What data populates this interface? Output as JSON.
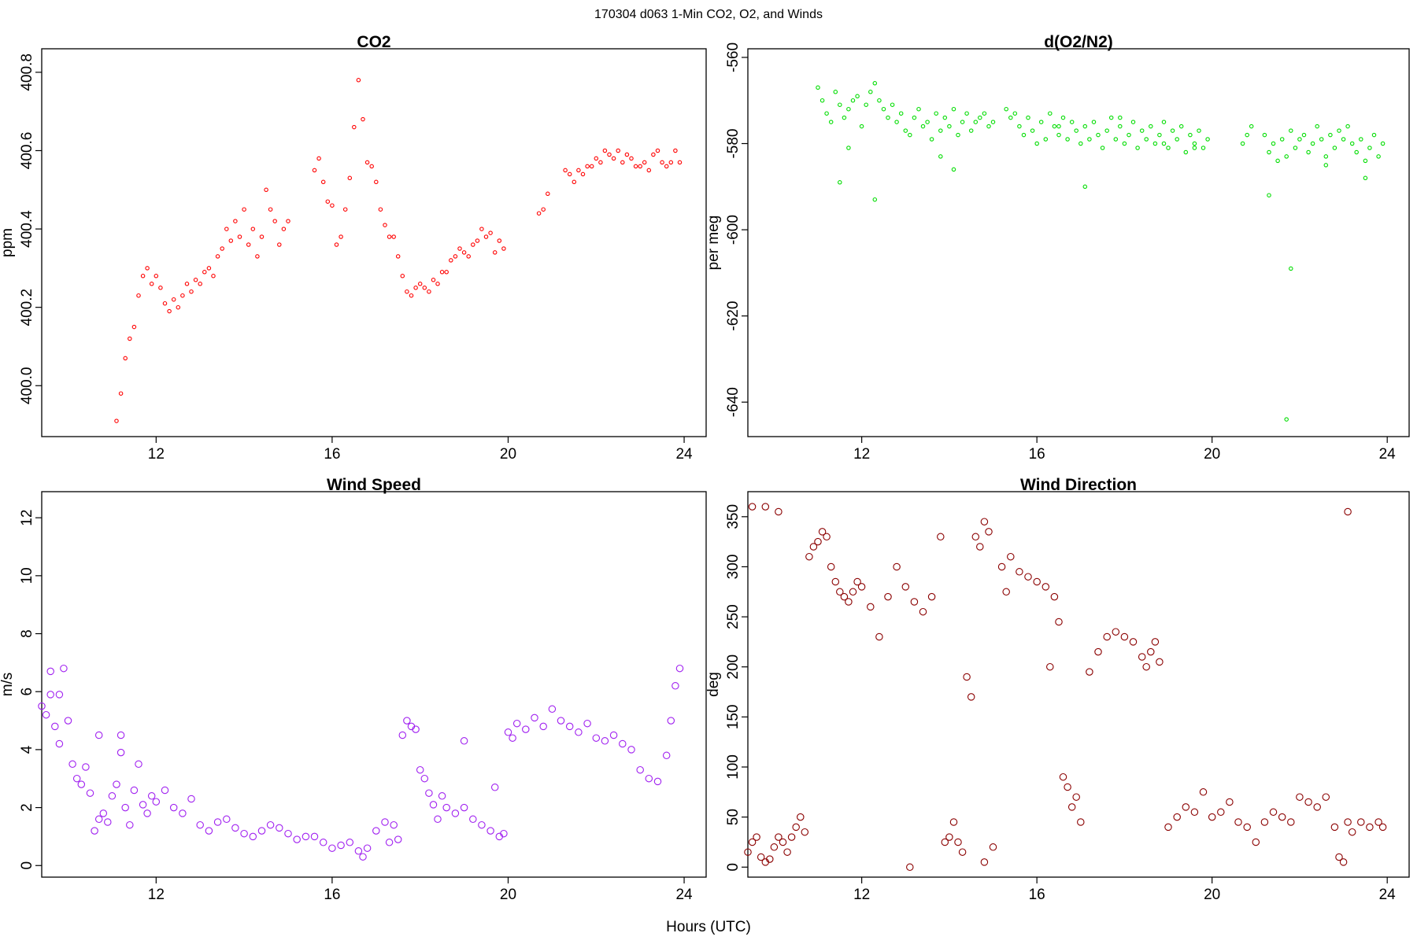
{
  "figure": {
    "title": "170304   d063   1-Min CO2, O2, and Winds",
    "xlabel": "Hours (UTC)"
  },
  "colors": {
    "co2": "#ff0000",
    "o2": "#00dd00",
    "wind_speed": "#a020f0",
    "wind_direction": "#8b0000"
  },
  "chart_data": [
    {
      "id": "co2",
      "type": "scatter",
      "title": "CO2",
      "xlabel": "",
      "ylabel": "ppm",
      "xlim": [
        9.4,
        24.5
      ],
      "ylim": [
        399.87,
        400.86
      ],
      "xticks": [
        12,
        16,
        20,
        24
      ],
      "yticks": [
        400.0,
        400.2,
        400.4,
        400.6,
        400.8
      ],
      "ytick_labels": [
        "400.0",
        "400.2",
        "400.4",
        "400.6",
        "400.8"
      ],
      "series": [
        {
          "name": "CO2",
          "color": "#ff0000",
          "x": [
            11.1,
            11.2,
            11.3,
            11.4,
            11.5,
            11.6,
            11.7,
            11.8,
            11.9,
            12.0,
            12.1,
            12.2,
            12.3,
            12.4,
            12.5,
            12.6,
            12.7,
            12.8,
            12.9,
            13.0,
            13.1,
            13.2,
            13.3,
            13.4,
            13.5,
            13.6,
            13.7,
            13.8,
            13.9,
            14.0,
            14.1,
            14.2,
            14.3,
            14.4,
            14.5,
            14.6,
            14.7,
            14.8,
            14.9,
            15.0,
            15.6,
            15.7,
            15.8,
            15.9,
            16.0,
            16.1,
            16.2,
            16.3,
            16.4,
            16.5,
            16.6,
            16.7,
            16.8,
            16.9,
            17.0,
            17.1,
            17.2,
            17.3,
            17.4,
            17.5,
            17.6,
            17.7,
            17.8,
            17.9,
            18.0,
            18.1,
            18.2,
            18.3,
            18.4,
            18.5,
            18.6,
            18.7,
            18.8,
            18.9,
            19.0,
            19.1,
            19.2,
            19.3,
            19.4,
            19.5,
            19.6,
            19.7,
            19.8,
            19.9,
            20.7,
            20.8,
            20.9,
            21.3,
            21.4,
            21.5,
            21.6,
            21.7,
            21.8,
            21.9,
            22.0,
            22.1,
            22.2,
            22.3,
            22.4,
            22.5,
            22.6,
            22.7,
            22.8,
            22.9,
            23.0,
            23.1,
            23.2,
            23.3,
            23.4,
            23.5,
            23.6,
            23.7,
            23.8,
            23.9
          ],
          "y": [
            399.91,
            399.98,
            400.07,
            400.12,
            400.15,
            400.23,
            400.28,
            400.3,
            400.26,
            400.28,
            400.25,
            400.21,
            400.19,
            400.22,
            400.2,
            400.23,
            400.26,
            400.24,
            400.27,
            400.26,
            400.29,
            400.3,
            400.28,
            400.33,
            400.35,
            400.4,
            400.37,
            400.42,
            400.38,
            400.45,
            400.36,
            400.4,
            400.33,
            400.38,
            400.5,
            400.45,
            400.42,
            400.36,
            400.4,
            400.42,
            400.55,
            400.58,
            400.52,
            400.47,
            400.46,
            400.36,
            400.38,
            400.45,
            400.53,
            400.66,
            400.78,
            400.68,
            400.57,
            400.56,
            400.52,
            400.45,
            400.41,
            400.38,
            400.38,
            400.33,
            400.28,
            400.24,
            400.23,
            400.25,
            400.26,
            400.25,
            400.24,
            400.27,
            400.26,
            400.29,
            400.29,
            400.32,
            400.33,
            400.35,
            400.34,
            400.33,
            400.36,
            400.37,
            400.4,
            400.38,
            400.39,
            400.34,
            400.37,
            400.35,
            400.44,
            400.45,
            400.49,
            400.55,
            400.54,
            400.52,
            400.55,
            400.54,
            400.56,
            400.56,
            400.58,
            400.57,
            400.6,
            400.59,
            400.58,
            400.6,
            400.57,
            400.59,
            400.58,
            400.56,
            400.56,
            400.57,
            400.55,
            400.59,
            400.6,
            400.57,
            400.56,
            400.57,
            400.6,
            400.57
          ]
        }
      ]
    },
    {
      "id": "o2",
      "type": "scatter",
      "title": "d(O2/N2)",
      "xlabel": "",
      "ylabel": "per meg",
      "xlim": [
        9.4,
        24.5
      ],
      "ylim": [
        -648,
        -558
      ],
      "xticks": [
        12,
        16,
        20,
        24
      ],
      "yticks": [
        -560,
        -580,
        -600,
        -620,
        -640
      ],
      "ytick_labels": [
        "-560",
        "-580",
        "-600",
        "-620",
        "-640"
      ],
      "series": [
        {
          "name": "d(O2/N2)",
          "color": "#00dd00",
          "x": [
            11.0,
            11.1,
            11.2,
            11.3,
            11.4,
            11.5,
            11.6,
            11.7,
            11.8,
            11.9,
            12.0,
            12.1,
            12.2,
            12.3,
            12.4,
            12.5,
            12.6,
            12.7,
            12.8,
            12.9,
            13.0,
            13.1,
            13.2,
            13.3,
            13.4,
            13.5,
            13.6,
            13.7,
            13.8,
            13.9,
            14.0,
            14.1,
            14.2,
            14.3,
            14.4,
            14.5,
            14.6,
            14.7,
            14.8,
            14.9,
            15.0,
            15.3,
            15.4,
            15.5,
            15.6,
            15.7,
            15.8,
            15.9,
            16.0,
            16.1,
            16.2,
            16.3,
            16.4,
            16.5,
            16.6,
            16.7,
            16.8,
            16.9,
            17.0,
            17.1,
            17.2,
            17.3,
            17.4,
            17.5,
            17.6,
            17.7,
            17.8,
            17.9,
            18.0,
            18.1,
            18.2,
            18.3,
            18.4,
            18.5,
            18.6,
            18.7,
            18.8,
            18.9,
            19.0,
            19.1,
            19.2,
            19.3,
            19.4,
            19.5,
            19.6,
            19.7,
            19.8,
            19.9,
            20.7,
            20.8,
            20.9,
            21.2,
            21.3,
            21.4,
            21.5,
            21.6,
            21.7,
            21.8,
            21.9,
            22.0,
            22.1,
            22.2,
            22.3,
            22.4,
            22.5,
            22.6,
            22.7,
            22.8,
            22.9,
            23.0,
            23.1,
            23.2,
            23.3,
            23.4,
            23.5,
            23.6,
            23.7,
            23.8,
            23.9,
            11.5,
            11.7,
            12.3,
            13.8,
            14.1,
            16.5,
            17.1,
            17.9,
            18.9,
            19.6,
            21.3,
            21.8,
            21.7,
            22.6,
            23.5
          ],
          "y": [
            -567,
            -570,
            -573,
            -575,
            -568,
            -571,
            -574,
            -572,
            -570,
            -569,
            -576,
            -571,
            -568,
            -566,
            -570,
            -572,
            -574,
            -571,
            -575,
            -573,
            -577,
            -578,
            -574,
            -572,
            -576,
            -575,
            -579,
            -573,
            -577,
            -574,
            -576,
            -572,
            -578,
            -575,
            -573,
            -577,
            -575,
            -574,
            -573,
            -576,
            -575,
            -572,
            -574,
            -573,
            -576,
            -578,
            -574,
            -577,
            -580,
            -575,
            -579,
            -573,
            -576,
            -578,
            -574,
            -579,
            -575,
            -577,
            -580,
            -576,
            -579,
            -575,
            -578,
            -581,
            -577,
            -574,
            -579,
            -576,
            -580,
            -578,
            -575,
            -581,
            -577,
            -579,
            -576,
            -580,
            -578,
            -575,
            -581,
            -577,
            -579,
            -576,
            -582,
            -578,
            -580,
            -577,
            -581,
            -579,
            -580,
            -578,
            -576,
            -578,
            -582,
            -580,
            -584,
            -579,
            -583,
            -577,
            -581,
            -579,
            -578,
            -582,
            -580,
            -576,
            -579,
            -583,
            -578,
            -581,
            -577,
            -579,
            -576,
            -580,
            -582,
            -579,
            -584,
            -581,
            -578,
            -583,
            -580,
            -589,
            -581,
            -593,
            -583,
            -586,
            -576,
            -590,
            -574,
            -580,
            -581,
            -592,
            -609,
            -644,
            -585,
            -588
          ]
        }
      ]
    },
    {
      "id": "wind_speed",
      "type": "scatter",
      "title": "Wind Speed",
      "xlabel": "",
      "ylabel": "m/s",
      "xlim": [
        9.4,
        24.5
      ],
      "ylim": [
        -0.4,
        12.9
      ],
      "xticks": [
        12,
        16,
        20,
        24
      ],
      "yticks": [
        0,
        2,
        4,
        6,
        8,
        10,
        12
      ],
      "ytick_labels": [
        "0",
        "2",
        "4",
        "6",
        "8",
        "10",
        "12"
      ],
      "series": [
        {
          "name": "Wind Speed",
          "color": "#a020f0",
          "x": [
            9.4,
            9.5,
            9.6,
            9.7,
            9.8,
            9.9,
            10.0,
            10.1,
            10.2,
            10.3,
            10.4,
            10.5,
            10.6,
            10.7,
            10.8,
            10.9,
            11.0,
            11.1,
            11.2,
            11.3,
            11.4,
            11.5,
            11.6,
            11.7,
            11.8,
            11.9,
            12.0,
            12.2,
            12.4,
            12.6,
            12.8,
            13.0,
            13.2,
            13.4,
            13.6,
            13.8,
            14.0,
            14.2,
            14.4,
            14.6,
            14.8,
            15.0,
            15.2,
            15.4,
            15.6,
            15.8,
            16.0,
            16.2,
            16.4,
            16.6,
            16.7,
            16.8,
            17.0,
            17.2,
            17.4,
            17.5,
            17.6,
            17.7,
            17.8,
            17.9,
            18.0,
            18.1,
            18.2,
            18.3,
            18.4,
            18.5,
            18.6,
            18.8,
            19.0,
            19.2,
            19.4,
            19.6,
            19.8,
            19.9,
            20.0,
            20.1,
            20.2,
            20.4,
            20.6,
            20.8,
            21.0,
            21.2,
            21.4,
            21.6,
            21.8,
            22.0,
            22.2,
            22.4,
            22.6,
            22.8,
            23.0,
            23.2,
            23.4,
            23.6,
            23.7,
            23.8,
            23.9,
            9.6,
            9.8,
            10.7,
            11.2,
            17.3,
            19.0,
            19.7
          ],
          "y": [
            5.5,
            5.2,
            5.9,
            4.8,
            4.2,
            6.8,
            5.0,
            3.5,
            3.0,
            2.8,
            3.4,
            2.5,
            1.2,
            1.6,
            1.8,
            1.5,
            2.4,
            2.8,
            3.9,
            2.0,
            1.4,
            2.6,
            3.5,
            2.1,
            1.8,
            2.4,
            2.2,
            2.6,
            2.0,
            1.8,
            2.3,
            1.4,
            1.2,
            1.5,
            1.6,
            1.3,
            1.1,
            1.0,
            1.2,
            1.4,
            1.3,
            1.1,
            0.9,
            1.0,
            1.0,
            0.8,
            0.6,
            0.7,
            0.8,
            0.5,
            0.3,
            0.6,
            1.2,
            1.5,
            1.4,
            0.9,
            4.5,
            5.0,
            4.8,
            4.7,
            3.3,
            3.0,
            2.5,
            2.1,
            1.6,
            2.4,
            2.0,
            1.8,
            2.0,
            1.6,
            1.4,
            1.2,
            1.0,
            1.1,
            4.6,
            4.4,
            4.9,
            4.7,
            5.1,
            4.8,
            5.4,
            5.0,
            4.8,
            4.6,
            4.9,
            4.4,
            4.3,
            4.5,
            4.2,
            4.0,
            3.3,
            3.0,
            2.9,
            3.8,
            5.0,
            6.2,
            6.8,
            6.7,
            5.9,
            4.5,
            4.5,
            0.8,
            4.3,
            2.7
          ]
        }
      ]
    },
    {
      "id": "wind_direction",
      "type": "scatter",
      "title": "Wind Direction",
      "xlabel": "",
      "ylabel": "deg",
      "xlim": [
        9.4,
        24.5
      ],
      "ylim": [
        -10,
        375
      ],
      "xticks": [
        12,
        16,
        20,
        24
      ],
      "yticks": [
        0,
        50,
        100,
        150,
        200,
        250,
        300,
        350
      ],
      "ytick_labels": [
        "0",
        "50",
        "100",
        "150",
        "200",
        "250",
        "300",
        "350"
      ],
      "series": [
        {
          "name": "Wind Direction",
          "color": "#8b0000",
          "x": [
            9.4,
            9.5,
            9.6,
            9.7,
            9.8,
            9.9,
            10.0,
            10.1,
            10.2,
            10.3,
            10.4,
            10.5,
            10.6,
            10.7,
            10.8,
            10.9,
            11.0,
            11.1,
            11.2,
            11.3,
            11.4,
            11.5,
            11.6,
            11.7,
            11.8,
            11.9,
            12.0,
            12.2,
            12.4,
            12.6,
            12.8,
            13.0,
            13.2,
            13.4,
            13.6,
            13.8,
            14.0,
            14.1,
            14.2,
            14.3,
            14.4,
            14.5,
            14.6,
            14.7,
            14.8,
            14.9,
            15.0,
            15.2,
            15.4,
            15.6,
            15.8,
            16.0,
            16.2,
            16.3,
            16.4,
            16.5,
            16.6,
            16.7,
            16.8,
            16.9,
            17.0,
            17.2,
            17.4,
            17.6,
            17.8,
            18.0,
            18.2,
            18.4,
            18.5,
            18.6,
            18.7,
            18.8,
            19.0,
            19.2,
            19.4,
            19.6,
            19.8,
            20.0,
            20.2,
            20.4,
            20.6,
            20.8,
            21.0,
            21.2,
            21.4,
            21.6,
            21.8,
            22.0,
            22.2,
            22.4,
            22.6,
            22.8,
            22.9,
            23.0,
            23.1,
            23.2,
            23.4,
            23.6,
            23.8,
            23.9,
            9.5,
            9.8,
            10.1,
            13.1,
            14.8,
            15.3,
            23.1,
            13.9
          ],
          "y": [
            15,
            25,
            30,
            10,
            5,
            8,
            20,
            30,
            25,
            15,
            30,
            40,
            50,
            35,
            310,
            320,
            325,
            335,
            330,
            300,
            285,
            275,
            270,
            265,
            275,
            285,
            280,
            260,
            230,
            270,
            300,
            280,
            265,
            255,
            270,
            330,
            30,
            45,
            25,
            15,
            190,
            170,
            330,
            320,
            345,
            335,
            20,
            300,
            310,
            295,
            290,
            285,
            280,
            200,
            270,
            245,
            90,
            80,
            60,
            70,
            45,
            195,
            215,
            230,
            235,
            230,
            225,
            210,
            200,
            215,
            225,
            205,
            40,
            50,
            60,
            55,
            75,
            50,
            55,
            65,
            45,
            40,
            25,
            45,
            55,
            50,
            45,
            70,
            65,
            60,
            70,
            40,
            10,
            5,
            45,
            35,
            45,
            40,
            45,
            40,
            360,
            360,
            355,
            0,
            5,
            275,
            355,
            25
          ]
        }
      ]
    }
  ]
}
